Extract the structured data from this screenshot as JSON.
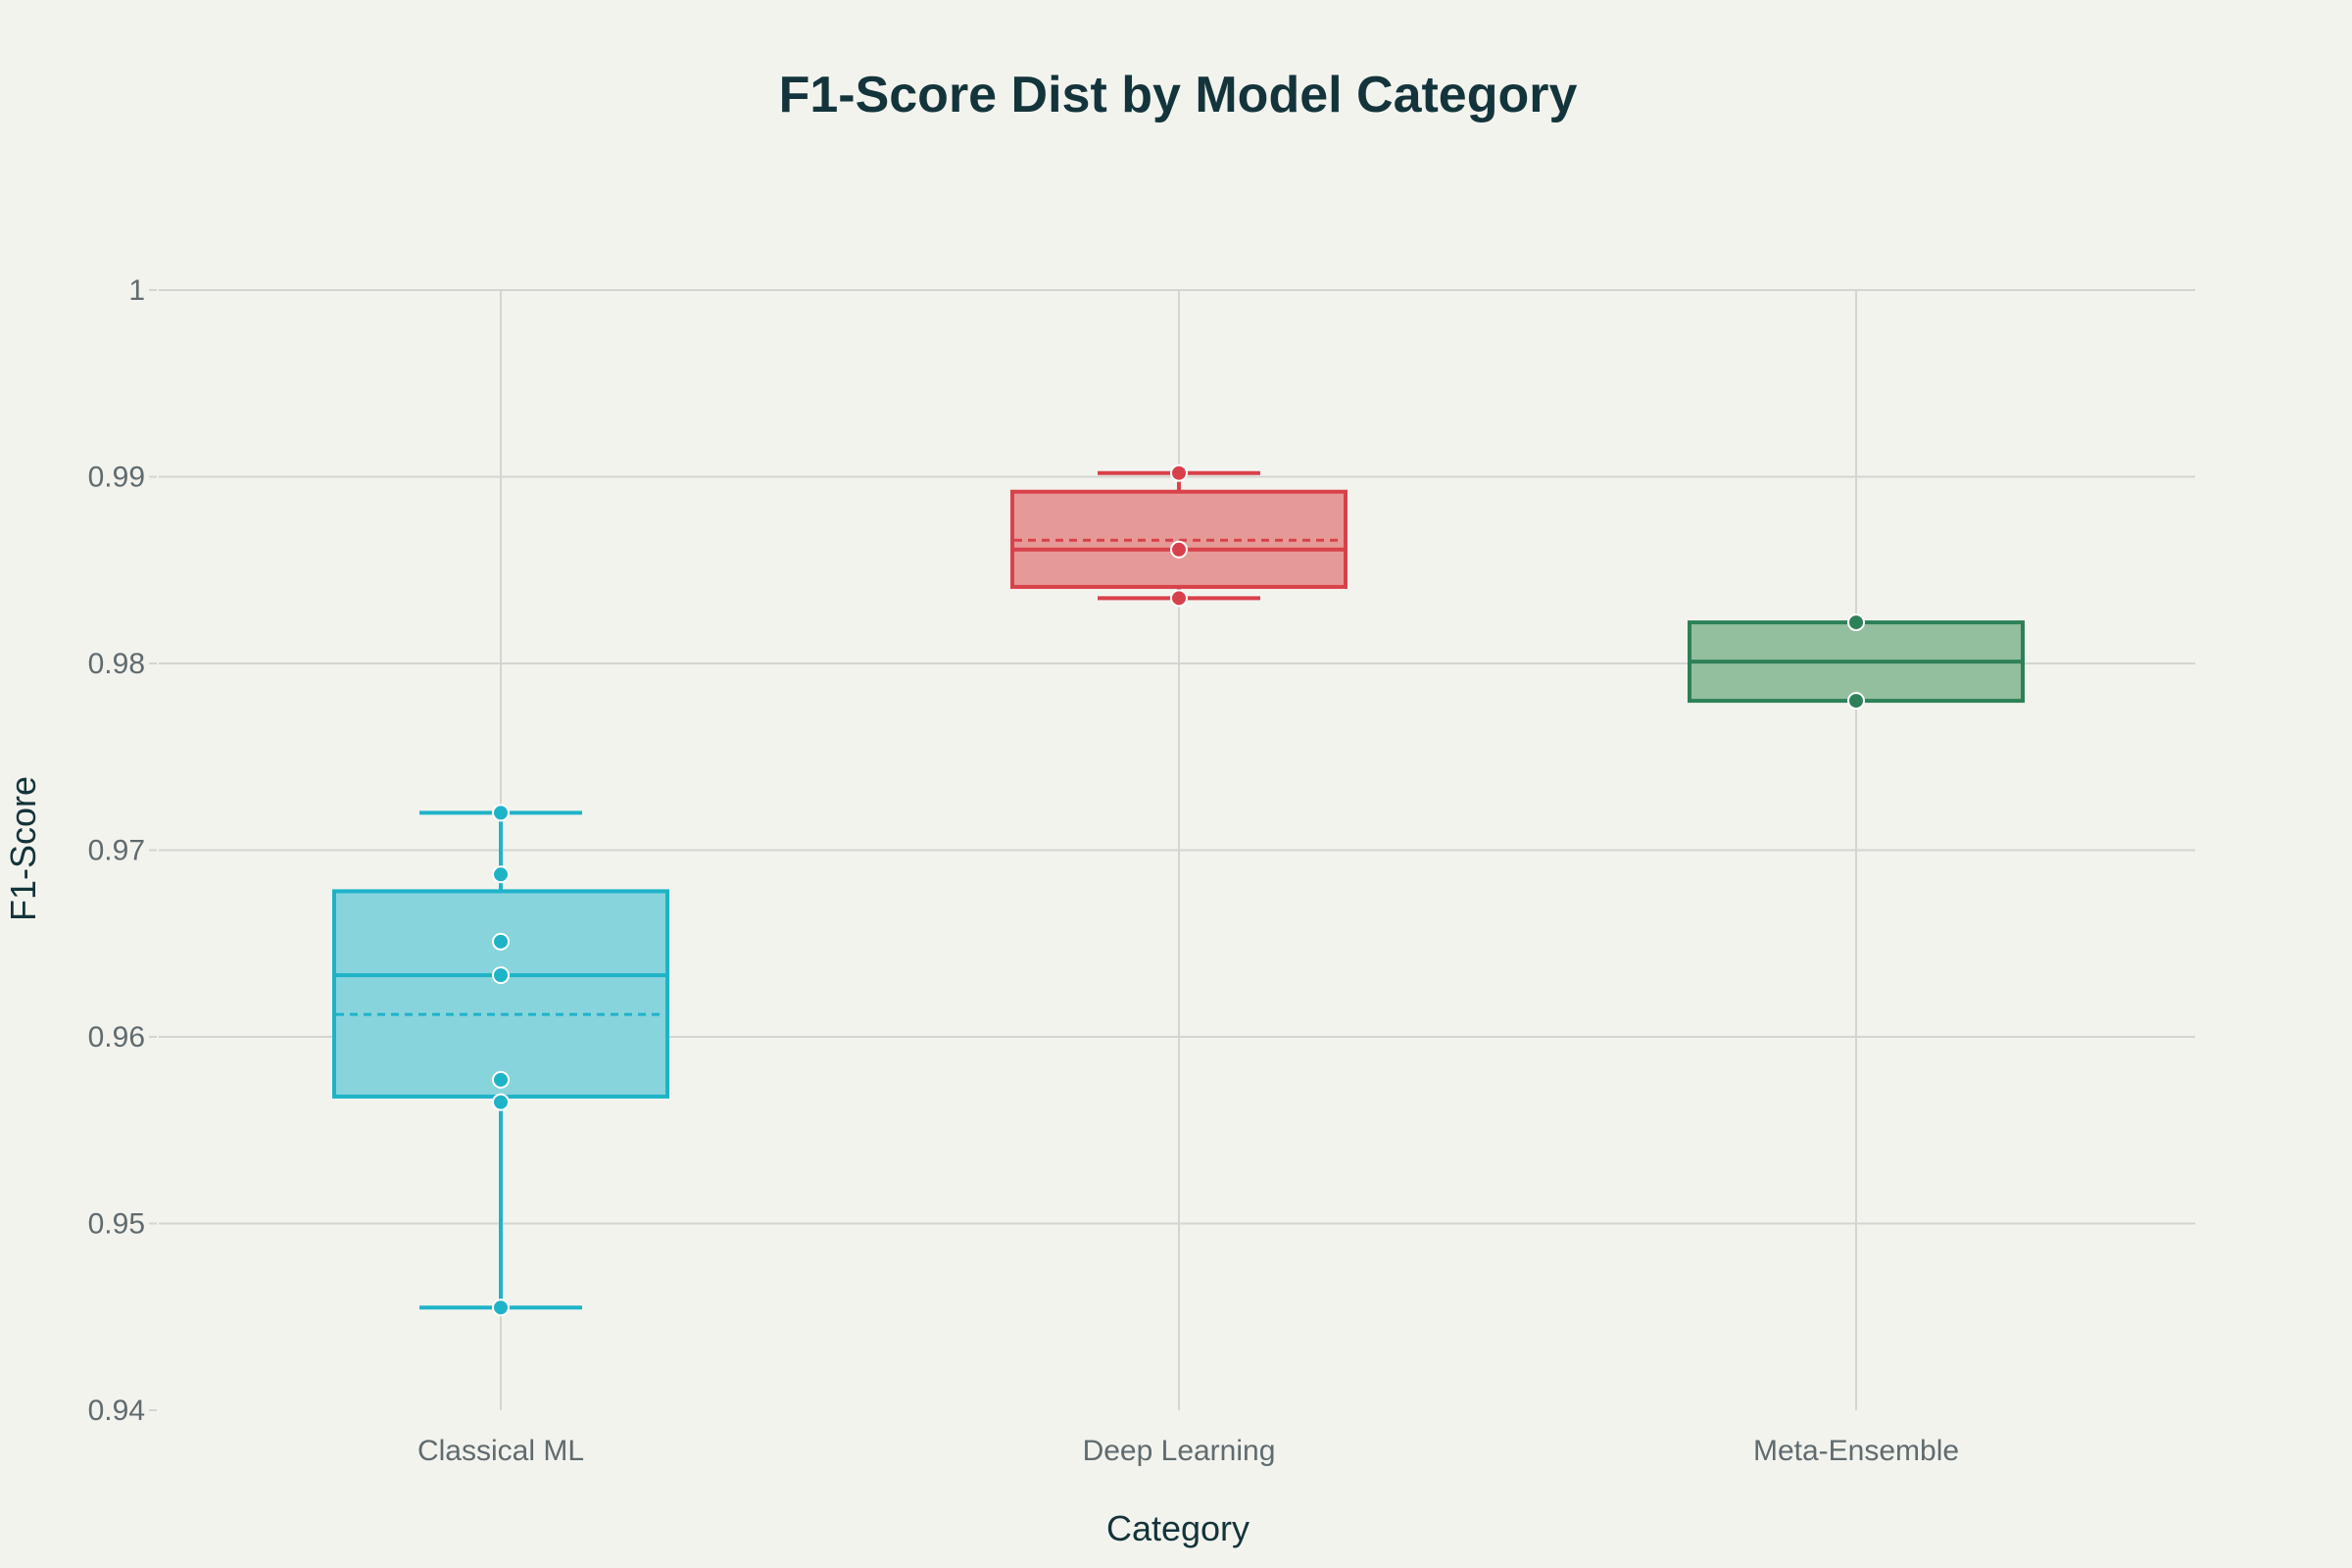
{
  "colors": {
    "background": "#f3f3ee",
    "grid": "#d4d4d0",
    "text_dark": "#13343b",
    "text_muted": "#5f6b6e"
  },
  "chart_data": {
    "type": "box",
    "title": "F1-Score Dist by Model Category",
    "xlabel": "Category",
    "ylabel": "F1-Score",
    "ylim": [
      0.94,
      1.0
    ],
    "y_ticks": [
      0.94,
      0.95,
      0.96,
      0.97,
      0.98,
      0.99,
      1
    ],
    "y_tick_labels": [
      "0.94",
      "0.95",
      "0.96",
      "0.97",
      "0.98",
      "0.99",
      "1"
    ],
    "grid": true,
    "categories": [
      "Classical ML",
      "Deep Learning",
      "Meta-Ensemble"
    ],
    "series": [
      {
        "category": "Classical ML",
        "color": "#1fb3c8",
        "fill": "#87d4dd",
        "whisker_low": 0.9455,
        "q1": 0.9568,
        "median": 0.9633,
        "mean": 0.9612,
        "q3": 0.9678,
        "whisker_high": 0.972,
        "points": [
          0.972,
          0.9687,
          0.9651,
          0.9633,
          0.9577,
          0.9565,
          0.9455
        ]
      },
      {
        "category": "Deep Learning",
        "color": "#d9414a",
        "fill": "#e69a98",
        "whisker_low": 0.9835,
        "q1": 0.9841,
        "median": 0.9861,
        "mean": 0.9866,
        "q3": 0.9892,
        "whisker_high": 0.9902,
        "points": [
          0.9902,
          0.9861,
          0.9835
        ]
      },
      {
        "category": "Meta-Ensemble",
        "color": "#2d8157",
        "fill": "#93bf9e",
        "whisker_low": 0.978,
        "q1": 0.978,
        "median": 0.9801,
        "mean": 0.9801,
        "q3": 0.9822,
        "whisker_high": 0.9822,
        "points": [
          0.9822,
          0.978
        ]
      }
    ]
  }
}
